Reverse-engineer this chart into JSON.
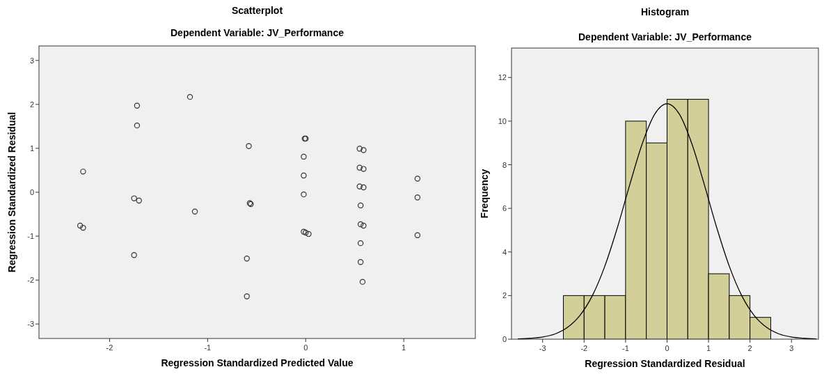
{
  "chart_data": [
    {
      "type": "scatter",
      "title": "Scatterplot",
      "subtitle": "Dependent Variable: JV_Performance",
      "xlabel": "Regression Standardized Predicted Value",
      "ylabel": "Regression Standardized Residual",
      "xlim": [
        -2.72,
        1.73
      ],
      "ylim": [
        -3.33,
        3.33
      ],
      "xticks": [
        -2,
        -1,
        0,
        1
      ],
      "yticks": [
        -3,
        -2,
        -1,
        0,
        1,
        2,
        3
      ],
      "grid": false,
      "marker": "circle",
      "series": [
        {
          "color": "#333333",
          "x": [
            -2.27,
            -2.3,
            -2.27,
            -1.72,
            -1.72,
            -1.75,
            -1.7,
            -1.75,
            -1.18,
            -1.13,
            -0.58,
            -0.57,
            -0.56,
            -0.6,
            -0.6,
            -0.01,
            0.0,
            -0.02,
            -0.02,
            -0.02,
            -0.02,
            0.0,
            0.03,
            0.55,
            0.59,
            0.55,
            0.59,
            0.55,
            0.59,
            0.56,
            0.56,
            0.59,
            0.56,
            0.56,
            0.58,
            1.14,
            1.14,
            1.14
          ],
          "values": [
            0.47,
            -0.76,
            -0.81,
            1.97,
            1.52,
            -0.14,
            -0.19,
            -1.43,
            2.17,
            -0.44,
            1.05,
            -0.25,
            -0.27,
            -1.51,
            -2.37,
            1.22,
            1.22,
            0.81,
            0.38,
            -0.05,
            -0.9,
            -0.92,
            -0.95,
            0.99,
            0.96,
            0.56,
            0.53,
            0.13,
            0.11,
            -0.3,
            -0.73,
            -0.76,
            -1.16,
            -1.59,
            -2.04,
            0.31,
            -0.12,
            -0.98
          ]
        }
      ]
    },
    {
      "type": "histogram",
      "title": "Histogram",
      "subtitle": "Dependent Variable: JV_Performance",
      "xlabel": "Regression Standardized Residual",
      "ylabel": "Frequency",
      "xlim": [
        -3.75,
        3.65
      ],
      "ylim": [
        0,
        13.35
      ],
      "xticks": [
        -3,
        -2,
        -1,
        0,
        1,
        2,
        3
      ],
      "yticks": [
        0,
        2,
        4,
        6,
        8,
        10,
        12
      ],
      "grid": false,
      "series": [
        {
          "color": "#d3cf98",
          "bins": [
            -2.5,
            -2,
            -1.5,
            -1,
            -0.5,
            0,
            0.5,
            1,
            1.5,
            2,
            2.5
          ],
          "values": [
            2,
            2,
            2,
            10,
            9,
            11,
            11,
            3,
            2,
            1
          ]
        },
        {
          "type": "line",
          "color": "#000000",
          "x": [
            -3.6,
            -3.3,
            -3.0,
            -2.7,
            -2.4,
            -2.1,
            -1.8,
            -1.5,
            -1.2,
            -0.9,
            -0.6,
            -0.3,
            0,
            0.3,
            0.6,
            0.9,
            1.2,
            1.5,
            1.8,
            2.1,
            2.4,
            2.7,
            3.0,
            3.3,
            3.6
          ],
          "values": [
            0.01,
            0.04,
            0.1,
            0.24,
            0.54,
            1.09,
            2.0,
            3.35,
            5.1,
            7.08,
            8.95,
            10.31,
            10.8,
            10.31,
            8.95,
            7.08,
            5.1,
            3.35,
            2.0,
            1.09,
            0.54,
            0.24,
            0.1,
            0.04,
            0.01
          ]
        }
      ]
    }
  ]
}
